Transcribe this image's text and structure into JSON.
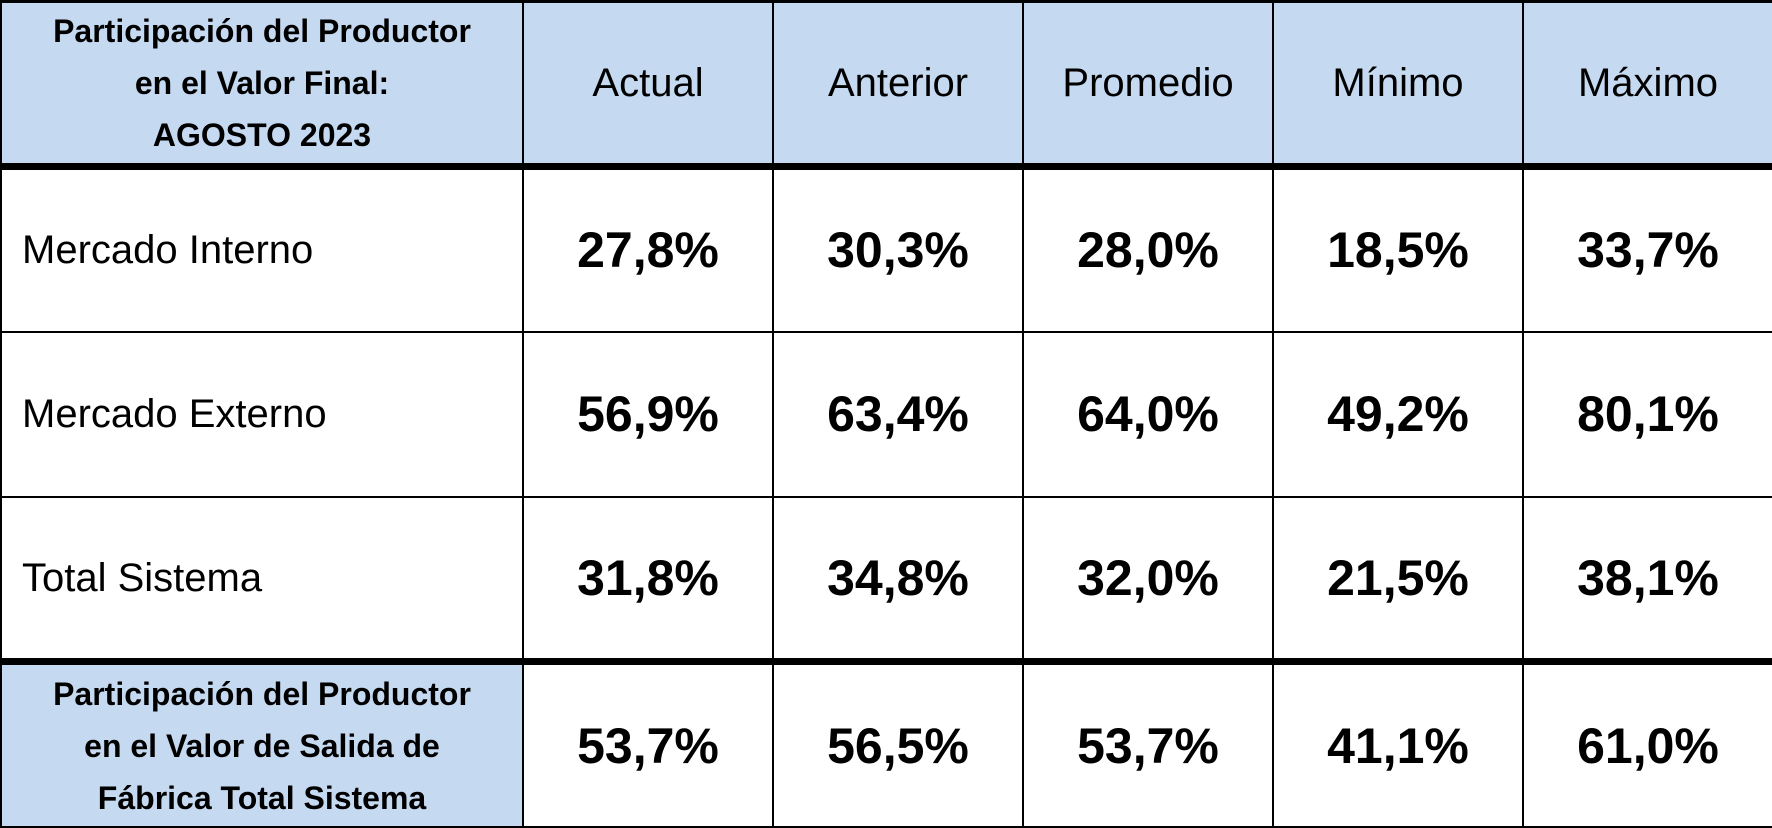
{
  "header": {
    "title_lines": [
      "Participación del Productor",
      "en el Valor Final:",
      "AGOSTO 2023"
    ],
    "columns": [
      "Actual",
      "Anterior",
      "Promedio",
      "Mínimo",
      "Máximo"
    ]
  },
  "rows": [
    {
      "label": "Mercado Interno",
      "values": [
        "27,8%",
        "30,3%",
        "28,0%",
        "18,5%",
        "33,7%"
      ]
    },
    {
      "label": "Mercado Externo",
      "values": [
        "56,9%",
        "63,4%",
        "64,0%",
        "49,2%",
        "80,1%"
      ]
    },
    {
      "label": "Total Sistema",
      "values": [
        "31,8%",
        "34,8%",
        "32,0%",
        "21,5%",
        "38,1%"
      ]
    }
  ],
  "footer": {
    "label_lines": [
      "Participación del Productor",
      "en el Valor de Salida de",
      "Fábrica Total Sistema"
    ],
    "values": [
      "53,7%",
      "56,5%",
      "53,7%",
      "41,1%",
      "61,0%"
    ]
  }
}
